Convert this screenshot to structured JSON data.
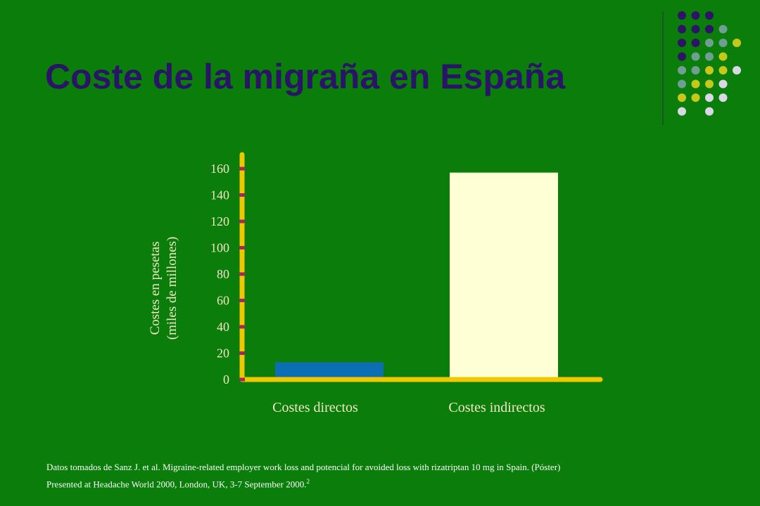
{
  "title": "Coste de la migraña en España",
  "footer": {
    "line1": "Datos tomados de Sanz J. et al. Migraine-related employer work loss and potencial for avoided loss with rizatriptan 10 mg in Spain. (Póster)",
    "line2": "Presented at Headache World 2000, London, UK, 3-7 September 2000.",
    "ref": "2"
  },
  "decoration": {
    "dot_grid_rows": [
      [
        "p",
        "p",
        "p",
        "",
        "",
        ""
      ],
      [
        "p",
        "p",
        "p",
        "t",
        "",
        ""
      ],
      [
        "p",
        "p",
        "t",
        "t",
        "y",
        ""
      ],
      [
        "p",
        "t",
        "t",
        "y",
        "",
        ""
      ],
      [
        "t",
        "t",
        "y",
        "y",
        "w",
        ""
      ],
      [
        "t",
        "y",
        "y",
        "w",
        "",
        ""
      ],
      [
        "y",
        "y",
        "w",
        "w",
        "",
        ""
      ],
      [
        "w",
        "",
        "w",
        "",
        "",
        ""
      ]
    ],
    "colors": {
      "p": "#2d1467",
      "t": "#6f9f92",
      "y": "#c7c817",
      "w": "#d9d9e6",
      "divider": "#1f4a2a"
    }
  },
  "chart_data": {
    "type": "bar",
    "categories": [
      "Costes directos",
      "Costes indirectos"
    ],
    "values": [
      13,
      157
    ],
    "bar_colors": [
      "#0d6fb3",
      "#ffffd6"
    ],
    "ylabel_lines": [
      "Costes en pesetas",
      "(miles de millones)"
    ],
    "ylim": [
      0,
      160
    ],
    "yticks": [
      0,
      20,
      40,
      60,
      80,
      100,
      120,
      140,
      160
    ],
    "grid": false,
    "axis_color": "#f0c800",
    "tick_color": "#a02a5a",
    "label_color": "#f2e8c4"
  }
}
